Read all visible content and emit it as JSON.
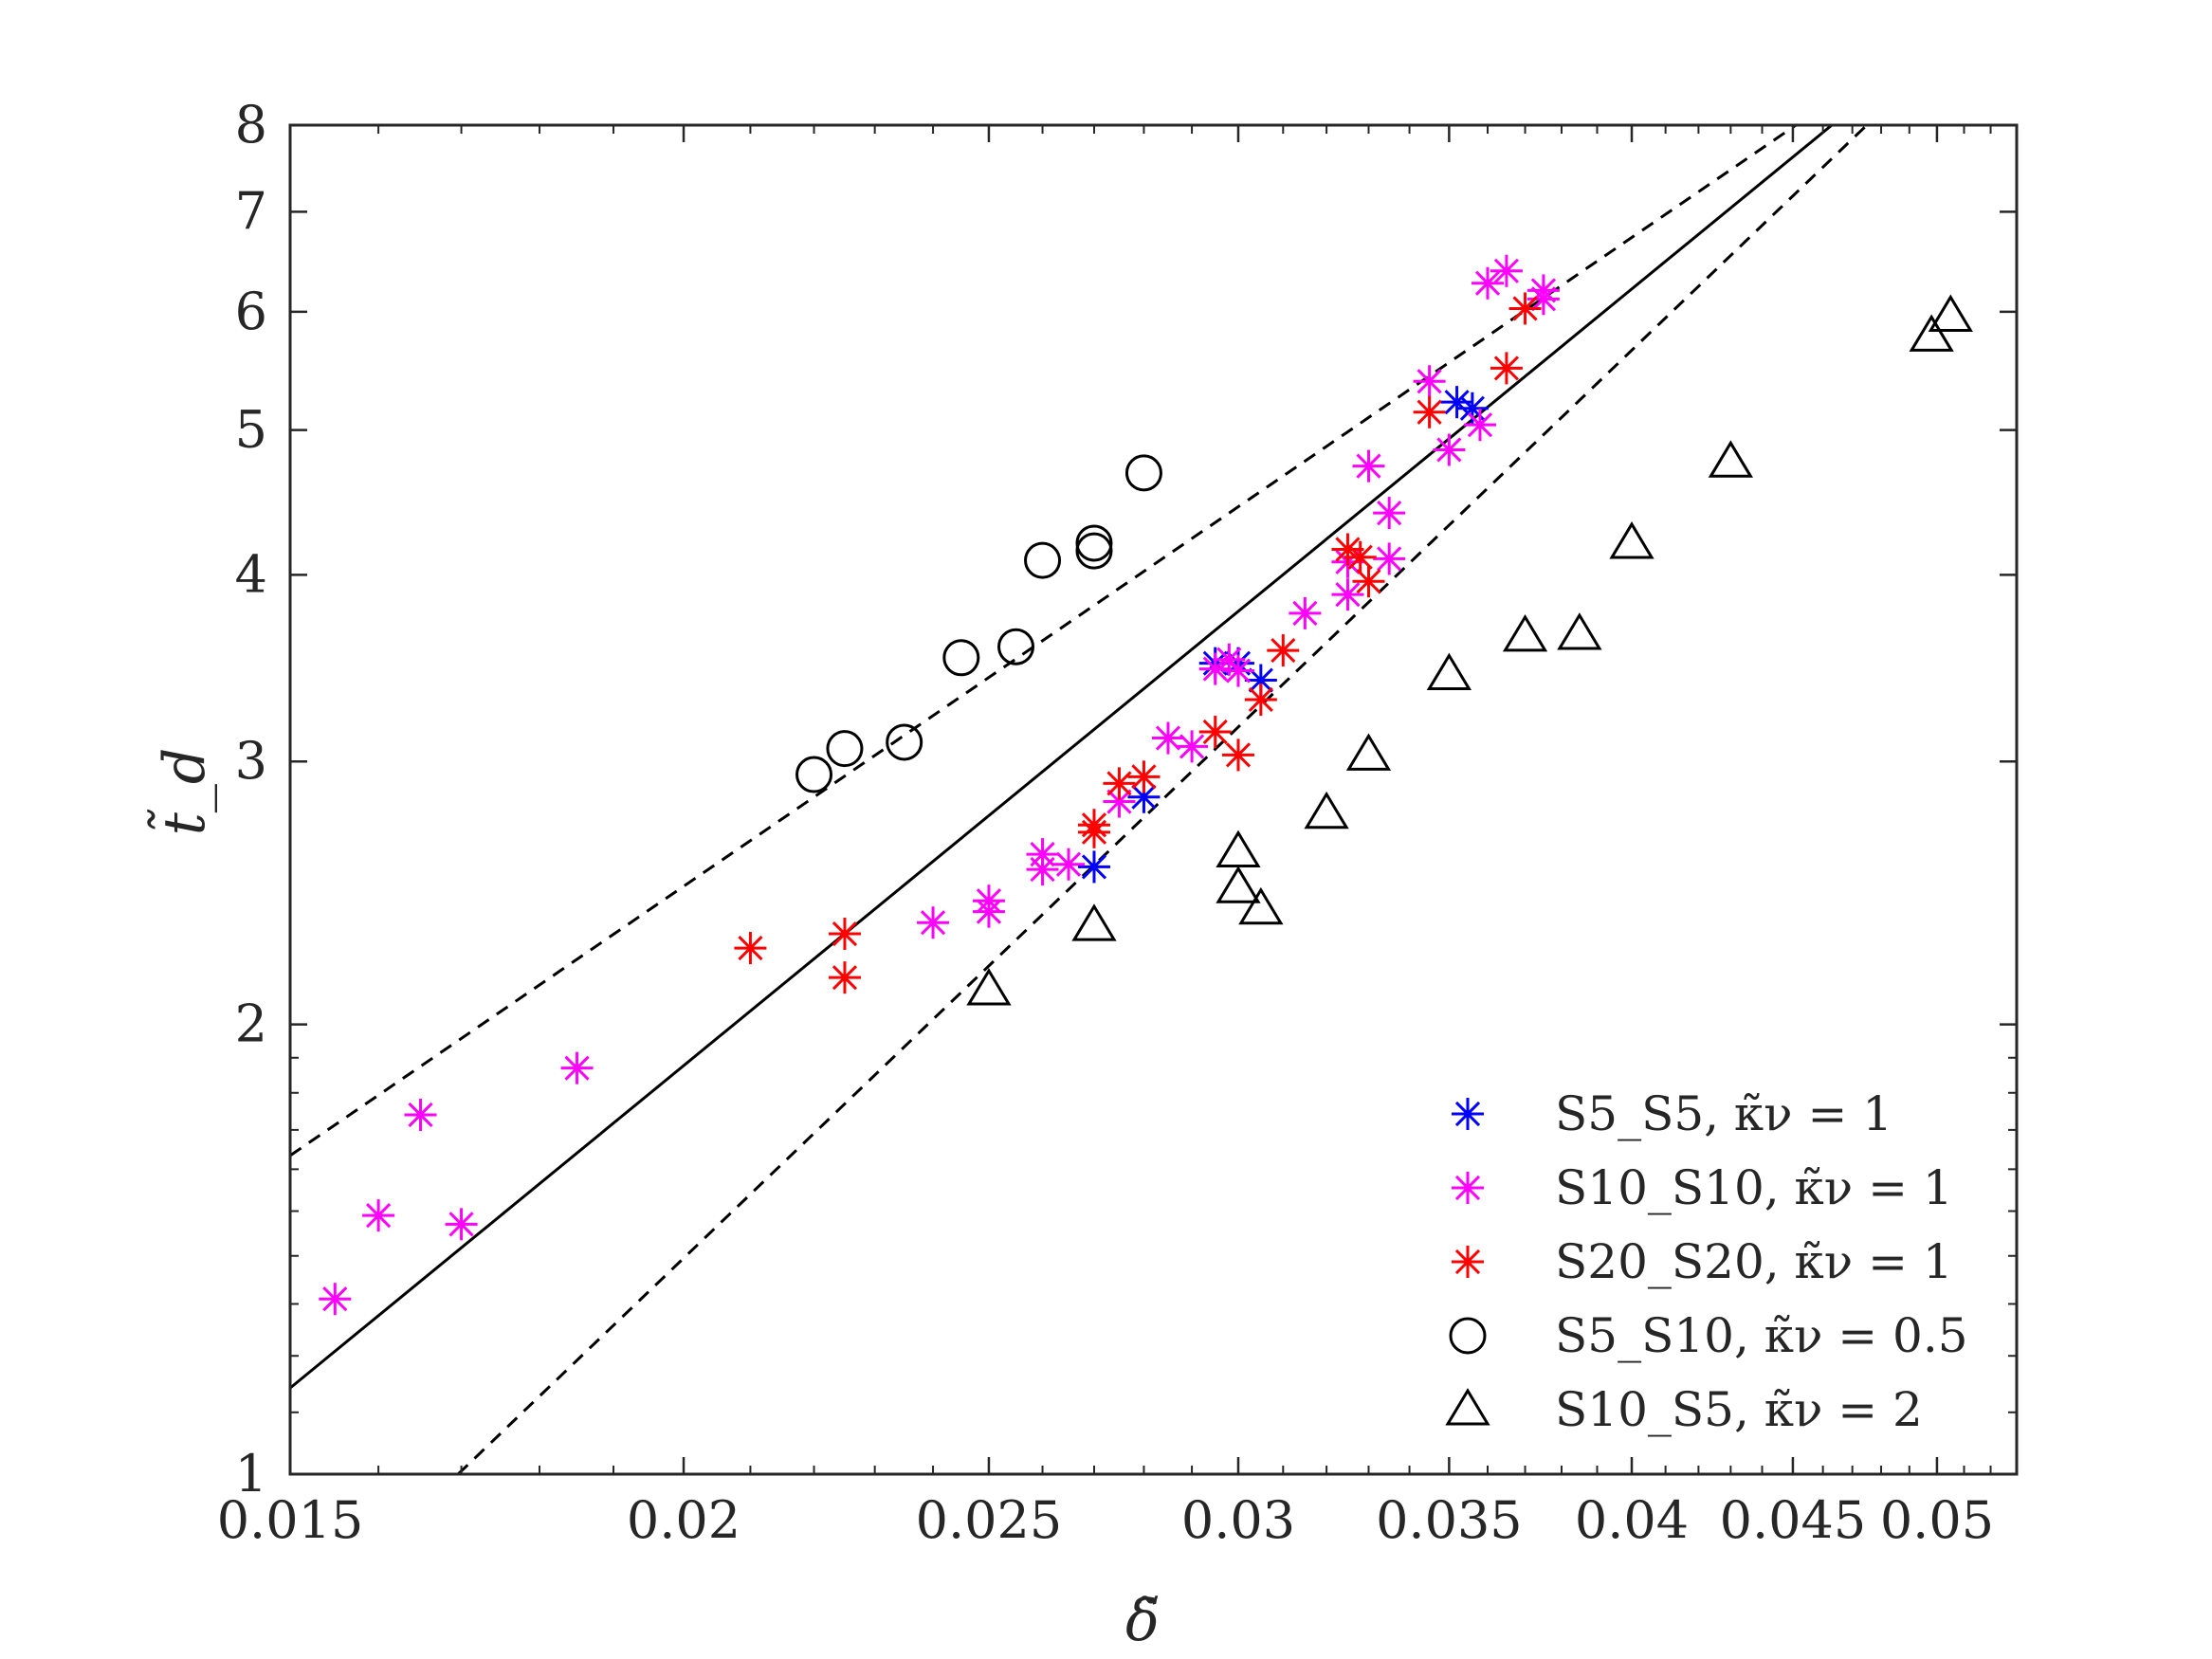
{
  "chart_data": {
    "type": "scatter",
    "xscale": "log",
    "yscale": "log",
    "xlim": [
      0.015,
      0.053
    ],
    "ylim": [
      1,
      8
    ],
    "xlabel": "δ̃",
    "ylabel": "t̃_d",
    "xticks": [
      0.015,
      0.02,
      0.025,
      0.03,
      0.035,
      0.04,
      0.045,
      0.05
    ],
    "xtick_labels": [
      "0.015",
      "0.02",
      "0.025",
      "0.03",
      "0.035",
      "0.04",
      "0.045",
      "0.05"
    ],
    "yticks": [
      1,
      2,
      3,
      4,
      5,
      6,
      7,
      8
    ],
    "ytick_labels": [
      "1",
      "2",
      "3",
      "4",
      "5",
      "6",
      "7",
      "8"
    ],
    "grid": false,
    "legend_position": "bottom-right",
    "lines": [
      {
        "name": "fit",
        "style": "solid",
        "color": "#000000",
        "x": [
          0.015,
          0.0463
        ],
        "y": [
          1.142,
          8.0
        ]
      },
      {
        "name": "upper-bound",
        "style": "dashed",
        "color": "#000000",
        "x": [
          0.015,
          0.0451
        ],
        "y": [
          1.634,
          8.0
        ]
      },
      {
        "name": "lower-bound",
        "style": "dashed",
        "color": "#000000",
        "x": [
          0.01696,
          0.0475
        ],
        "y": [
          1.0,
          8.0
        ]
      }
    ],
    "series": [
      {
        "name": "S5_S5",
        "legend": "S5_S5, κ̃ν = 1",
        "marker": "asterisk",
        "color": "#0000ff",
        "points": [
          [
            0.027,
            2.55
          ],
          [
            0.028,
            2.84
          ],
          [
            0.0295,
            3.49
          ],
          [
            0.03,
            3.49
          ],
          [
            0.0305,
            3.4
          ],
          [
            0.0352,
            5.22
          ],
          [
            0.0356,
            5.17
          ]
        ]
      },
      {
        "name": "S10_S10",
        "legend": "S10_S10, κ̃ν = 1",
        "marker": "asterisk",
        "color": "#ff00ff",
        "points": [
          [
            0.0155,
            1.31
          ],
          [
            0.016,
            1.49
          ],
          [
            0.0165,
            1.74
          ],
          [
            0.017,
            1.47
          ],
          [
            0.0185,
            1.87
          ],
          [
            0.024,
            2.34
          ],
          [
            0.025,
            2.42
          ],
          [
            0.025,
            2.38
          ],
          [
            0.026,
            2.6
          ],
          [
            0.026,
            2.54
          ],
          [
            0.0265,
            2.56
          ],
          [
            0.0275,
            2.82
          ],
          [
            0.0285,
            3.11
          ],
          [
            0.029,
            3.07
          ],
          [
            0.0295,
            3.46
          ],
          [
            0.0298,
            3.51
          ],
          [
            0.03,
            3.45
          ],
          [
            0.0315,
            3.77
          ],
          [
            0.0325,
            3.88
          ],
          [
            0.0325,
            4.08
          ],
          [
            0.033,
            4.73
          ],
          [
            0.0335,
            4.4
          ],
          [
            0.0335,
            4.1
          ],
          [
            0.0345,
            5.39
          ],
          [
            0.035,
            4.85
          ],
          [
            0.0358,
            5.04
          ],
          [
            0.036,
            6.27
          ],
          [
            0.0365,
            6.39
          ],
          [
            0.0375,
            6.2
          ],
          [
            0.0375,
            6.12
          ]
        ]
      },
      {
        "name": "S20_S20",
        "legend": "S20_S20, κ̃ν = 1",
        "marker": "asterisk",
        "color": "#ff0000",
        "points": [
          [
            0.021,
            2.25
          ],
          [
            0.0225,
            2.3
          ],
          [
            0.0225,
            2.15
          ],
          [
            0.027,
            2.72
          ],
          [
            0.027,
            2.69
          ],
          [
            0.0275,
            2.9
          ],
          [
            0.028,
            2.93
          ],
          [
            0.0295,
            3.14
          ],
          [
            0.03,
            3.03
          ],
          [
            0.0305,
            3.3
          ],
          [
            0.031,
            3.56
          ],
          [
            0.0325,
            4.16
          ],
          [
            0.0328,
            4.11
          ],
          [
            0.033,
            3.96
          ],
          [
            0.0345,
            5.14
          ],
          [
            0.0365,
            5.5
          ],
          [
            0.037,
            6.03
          ]
        ]
      },
      {
        "name": "S5_S10",
        "legend": "S5_S10, κ̃ν = 0.5",
        "marker": "circle",
        "color": "#000000",
        "points": [
          [
            0.022,
            2.94
          ],
          [
            0.0225,
            3.06
          ],
          [
            0.0235,
            3.09
          ],
          [
            0.0245,
            3.52
          ],
          [
            0.0255,
            3.58
          ],
          [
            0.026,
            4.09
          ],
          [
            0.027,
            4.2
          ],
          [
            0.027,
            4.15
          ],
          [
            0.028,
            4.68
          ]
        ]
      },
      {
        "name": "S10_S5",
        "legend": "S10_S5, κ̃ν = 2",
        "marker": "triangle",
        "color": "#000000",
        "points": [
          [
            0.025,
            2.11
          ],
          [
            0.027,
            2.33
          ],
          [
            0.03,
            2.61
          ],
          [
            0.03,
            2.47
          ],
          [
            0.0305,
            2.39
          ],
          [
            0.032,
            2.77
          ],
          [
            0.033,
            3.03
          ],
          [
            0.035,
            3.43
          ],
          [
            0.037,
            3.64
          ],
          [
            0.0385,
            3.65
          ],
          [
            0.04,
            4.2
          ],
          [
            0.043,
            4.76
          ],
          [
            0.0498,
            5.78
          ],
          [
            0.0505,
            5.96
          ]
        ]
      }
    ]
  }
}
